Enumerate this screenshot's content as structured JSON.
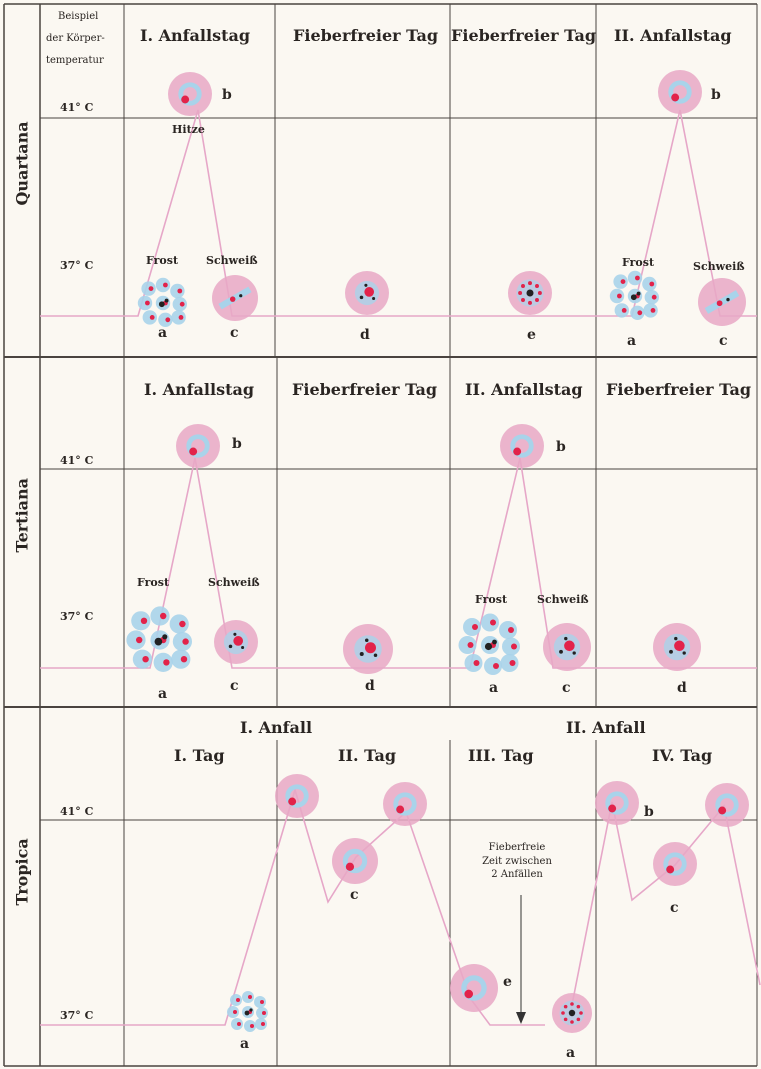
{
  "column_header": {
    "line1": "Beispiel",
    "line2": "der Körper-",
    "line3": "temperatur"
  },
  "temps": {
    "high": "41° C",
    "low": "37° C"
  },
  "quartana": {
    "label": "Quartana",
    "days": [
      "I. Anfallstag",
      "Fieberfreier Tag",
      "Fieberfreier Tag",
      "II. Anfallstag"
    ],
    "hitze": "Hitze",
    "frost": "Frost",
    "schweiss": "Schweiß",
    "letters": {
      "a": "a",
      "b": "b",
      "c": "c",
      "d": "d",
      "e": "e"
    }
  },
  "tertiana": {
    "label": "Tertiana",
    "days": [
      "I. Anfallstag",
      "Fieberfreier Tag",
      "II. Anfallstag",
      "Fieberfreier Tag"
    ],
    "frost": "Frost",
    "schweiss": "Schweiß",
    "letters": {
      "a": "a",
      "b": "b",
      "c": "c",
      "d": "d"
    }
  },
  "tropica": {
    "label": "Tropica",
    "attacks": [
      "I. Anfall",
      "II. Anfall"
    ],
    "days": [
      "I. Tag",
      "II. Tag",
      "III. Tag",
      "IV. Tag"
    ],
    "note": [
      "Fieberfreie",
      "Zeit zwischen",
      "2 Anfällen"
    ],
    "letters": {
      "a": "a",
      "b": "b",
      "c": "c",
      "e": "e"
    }
  },
  "colors": {
    "curve": "#e6a7c8",
    "cell_pink": "#e8a8c6",
    "cell_blue": "#a9d3ea",
    "parasite": "#e2234a",
    "grid": "#4a4440",
    "pigment": "#222222"
  }
}
